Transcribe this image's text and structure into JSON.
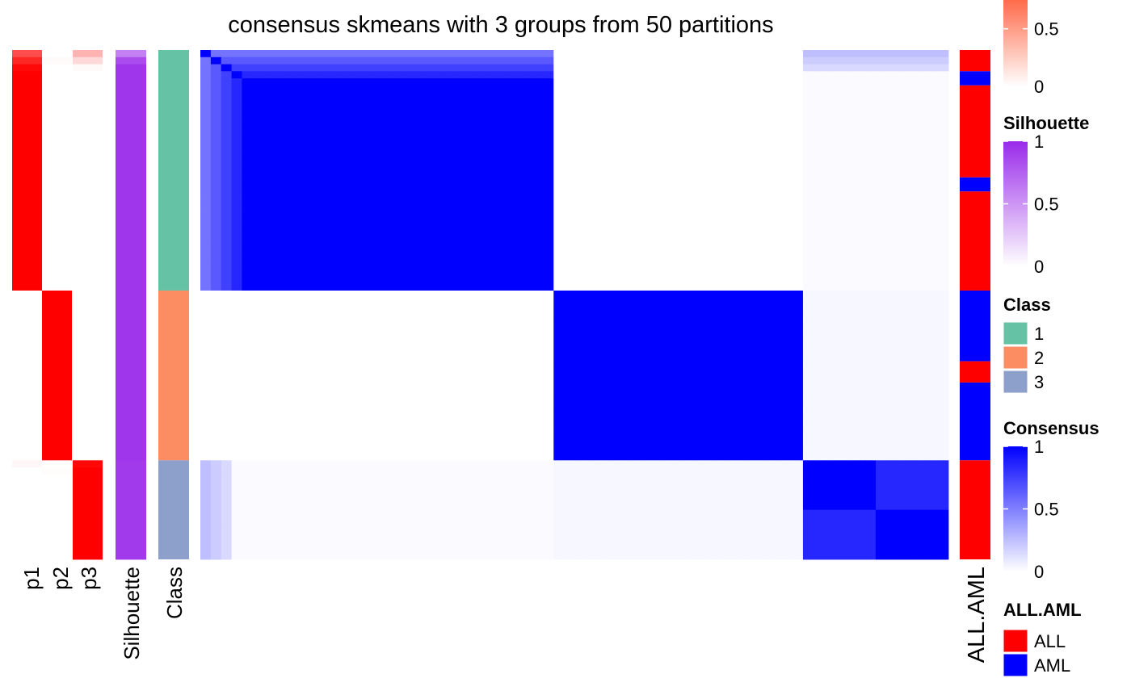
{
  "chart_data": {
    "type": "heatmap",
    "title": "consensus skmeans with 3 groups from 50 partitions",
    "n_samples": 72,
    "class_sizes": [
      34,
      24,
      14
    ],
    "row_annotations": [
      {
        "label": "p1"
      },
      {
        "label": "p2"
      },
      {
        "label": "p3"
      },
      {
        "label": "Silhouette"
      },
      {
        "label": "Class"
      }
    ],
    "right_annotation": {
      "label": "ALL.AML"
    },
    "row_annotation_values": {
      "p1": {
        "class1": [
          0.7,
          0.85,
          0.97,
          1
        ],
        "class2": [
          0
        ],
        "class3": [
          0.03,
          0
        ]
      },
      "p2": {
        "class1": [
          0,
          0.02,
          0
        ],
        "class2": [
          1
        ],
        "class3": [
          0,
          0.01,
          0
        ]
      },
      "p3": {
        "class1": [
          0.3,
          0.15,
          0.02,
          0
        ],
        "class2": [
          0
        ],
        "class3": [
          0.97,
          1
        ]
      },
      "silhouette": {
        "class1": [
          0.6,
          0.85,
          0.95
        ],
        "class2": [
          0.95
        ],
        "class3": [
          0.93
        ]
      }
    },
    "all_aml_runs": [
      {
        "value": "ALL",
        "count": 3
      },
      {
        "value": "AML",
        "count": 2
      },
      {
        "value": "ALL",
        "count": 13
      },
      {
        "value": "AML",
        "count": 2
      },
      {
        "value": "ALL",
        "count": 14
      },
      {
        "value": "AML",
        "count": 10
      },
      {
        "value": "ALL",
        "count": 3
      },
      {
        "value": "AML",
        "count": 11
      },
      {
        "value": "ALL",
        "count": 14
      }
    ],
    "consensus_matrix_blocks": {
      "within_class1": 1.0,
      "within_class2": 1.0,
      "within_class3": 0.92,
      "class1_class2": 0.0,
      "class1_class3": 0.12,
      "class2_class3": 0.03
    },
    "legends": [
      {
        "title": "",
        "type": "continuous",
        "colors": [
          "#ffffff",
          "#ff6b4a"
        ],
        "ticks": [
          "0",
          "0.5"
        ],
        "tick_values": [
          0,
          0.5
        ],
        "range": [
          0,
          0.75
        ]
      },
      {
        "title": "Silhouette",
        "type": "continuous",
        "colors": [
          "#ffffff",
          "#9a2bea"
        ],
        "ticks": [
          "0",
          "0.5",
          "1"
        ],
        "tick_values": [
          0,
          0.5,
          1
        ],
        "range": [
          0,
          1
        ]
      },
      {
        "title": "Class",
        "type": "discrete",
        "items": [
          {
            "label": "1",
            "color": "#66c2a5"
          },
          {
            "label": "2",
            "color": "#fc8d62"
          },
          {
            "label": "3",
            "color": "#8da0cb"
          }
        ]
      },
      {
        "title": "Consensus",
        "type": "continuous",
        "colors": [
          "#ffffff",
          "#0000ff"
        ],
        "ticks": [
          "0",
          "0.5",
          "1"
        ],
        "tick_values": [
          0,
          0.5,
          1
        ],
        "range": [
          0,
          1
        ]
      },
      {
        "title": "ALL.AML",
        "type": "discrete",
        "items": [
          {
            "label": "ALL",
            "color": "#ff0000"
          },
          {
            "label": "AML",
            "color": "#0000ff"
          }
        ]
      }
    ],
    "colors": {
      "prob_high": "#ff0000",
      "silhouette_high": "#9a2bea",
      "consensus_high": "#0000ff",
      "class1": "#66c2a5",
      "class2": "#fc8d62",
      "class3": "#8da0cb",
      "ALL": "#ff0000",
      "AML": "#0000ff"
    }
  }
}
